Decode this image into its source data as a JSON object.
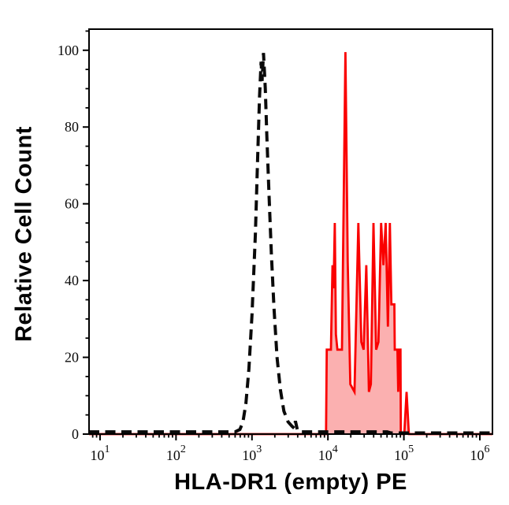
{
  "chart_data": {
    "type": "line",
    "subtype": "flow-cytometry-overlay-histogram",
    "title": "",
    "xlabel": "HLA-DR1 (empty) PE",
    "ylabel": "Relative Cell Count",
    "grid": false,
    "legend": null,
    "frame": "full-box",
    "colors": {
      "frame": "#000000",
      "dashed_series": "#0a0a0a",
      "red_series_stroke": "#fa0000",
      "red_series_fill": "#fbb0b0",
      "baseline_overlap": "#8c1616"
    },
    "x_axis": {
      "scale": "log10",
      "log10_range": [
        0.855,
        6.166
      ],
      "major_ticks": [
        {
          "log": 1,
          "base": "10",
          "exp": "1"
        },
        {
          "log": 2,
          "base": "10",
          "exp": "2"
        },
        {
          "log": 3,
          "base": "10",
          "exp": "3"
        },
        {
          "log": 4,
          "base": "10",
          "exp": "4"
        },
        {
          "log": 5,
          "base": "10",
          "exp": "5"
        },
        {
          "log": 6,
          "base": "10",
          "exp": "6"
        }
      ],
      "minor_mantissas": [
        2,
        3,
        4,
        5,
        6,
        7,
        8,
        9
      ]
    },
    "y_axis": {
      "range": [
        0,
        105.5
      ],
      "ticks": [
        0,
        20,
        40,
        60,
        80,
        100
      ],
      "minor_step": 5
    },
    "series": [
      {
        "name": "red-filled-histogram",
        "line_style": "solid",
        "stroke": "#fa0000",
        "stroke_width": 2.8,
        "fill": "#fbb0b0",
        "peak_log10x": 4.23,
        "peak_value": 99.5,
        "points": [
          [
            0.855,
            0
          ],
          [
            3.9,
            0
          ],
          [
            3.975,
            0
          ],
          [
            3.985,
            22
          ],
          [
            4.04,
            22
          ],
          [
            4.06,
            44
          ],
          [
            4.075,
            38
          ],
          [
            4.09,
            55
          ],
          [
            4.105,
            26
          ],
          [
            4.125,
            22
          ],
          [
            4.185,
            22
          ],
          [
            4.23,
            99.5
          ],
          [
            4.26,
            45
          ],
          [
            4.295,
            13
          ],
          [
            4.35,
            11
          ],
          [
            4.4,
            55
          ],
          [
            4.44,
            24
          ],
          [
            4.47,
            22
          ],
          [
            4.505,
            44
          ],
          [
            4.54,
            11
          ],
          [
            4.565,
            13
          ],
          [
            4.6,
            55
          ],
          [
            4.635,
            22
          ],
          [
            4.665,
            24
          ],
          [
            4.7,
            55
          ],
          [
            4.73,
            44
          ],
          [
            4.76,
            55
          ],
          [
            4.79,
            28
          ],
          [
            4.815,
            55
          ],
          [
            4.835,
            33.8
          ],
          [
            4.875,
            33.8
          ],
          [
            4.88,
            22
          ],
          [
            4.915,
            22
          ],
          [
            4.925,
            11
          ],
          [
            4.94,
            22
          ],
          [
            4.955,
            22
          ],
          [
            4.96,
            0
          ],
          [
            5.005,
            0
          ],
          [
            5.035,
            11
          ],
          [
            5.065,
            0
          ],
          [
            6.166,
            0
          ]
        ]
      },
      {
        "name": "black-dashed-histogram",
        "line_style": "dashed",
        "stroke": "#0a0a0a",
        "stroke_width": 4,
        "dash_array": "13 7.5",
        "fill": null,
        "peak_log10x": 3.15,
        "peak_value": 99.3,
        "points": [
          [
            0.855,
            0.6
          ],
          [
            2.78,
            0.6
          ],
          [
            2.84,
            1.2
          ],
          [
            2.88,
            3
          ],
          [
            2.92,
            8
          ],
          [
            2.96,
            17
          ],
          [
            3.0,
            31
          ],
          [
            3.045,
            52
          ],
          [
            3.075,
            72
          ],
          [
            3.1,
            88
          ],
          [
            3.12,
            97
          ],
          [
            3.133,
            92
          ],
          [
            3.152,
            99.3
          ],
          [
            3.175,
            90
          ],
          [
            3.195,
            78
          ],
          [
            3.225,
            62
          ],
          [
            3.255,
            47
          ],
          [
            3.29,
            33
          ],
          [
            3.33,
            20
          ],
          [
            3.375,
            11.5
          ],
          [
            3.42,
            6
          ],
          [
            3.475,
            3.2
          ],
          [
            3.53,
            2
          ],
          [
            3.558,
            1.5
          ],
          [
            3.572,
            3.4
          ],
          [
            3.6,
            0.9
          ],
          [
            3.64,
            0.6
          ],
          [
            4.78,
            0.6
          ],
          [
            4.83,
            0.3
          ],
          [
            6.166,
            0.3
          ]
        ]
      }
    ]
  }
}
